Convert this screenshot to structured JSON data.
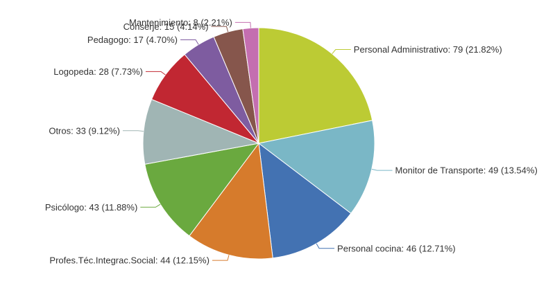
{
  "chart_data": {
    "type": "pie",
    "title": "",
    "start_angle_deg": 0,
    "direction": "clockwise",
    "slices": [
      {
        "label": "Personal Administrativo",
        "value": 79,
        "percent": "21.82%",
        "color": "#BCCB34",
        "text": "Personal Administrativo: 79 (21.82%)"
      },
      {
        "label": "Monitor de Transporte",
        "value": 49,
        "percent": "13.54%",
        "color": "#7AB7C6",
        "text": "Monitor de Transporte: 49 (13.54%)"
      },
      {
        "label": "Personal cocina",
        "value": 46,
        "percent": "12.71%",
        "color": "#4372B2",
        "text": "Personal cocina: 46 (12.71%)"
      },
      {
        "label": "Profes.Téc.Integrac.Social",
        "value": 44,
        "percent": "12.15%",
        "color": "#D67B2C",
        "text": "Profes.Téc.Integrac.Social: 44 (12.15%)"
      },
      {
        "label": "Psicólogo",
        "value": 43,
        "percent": "11.88%",
        "color": "#6AA93F",
        "text": "Psicólogo: 43 (11.88%)"
      },
      {
        "label": "Otros",
        "value": 33,
        "percent": "9.12%",
        "color": "#A0B5B4",
        "text": "Otros: 33 (9.12%)"
      },
      {
        "label": "Logopeda",
        "value": 28,
        "percent": "7.73%",
        "color": "#C12732",
        "text": "Logopeda: 28 (7.73%)"
      },
      {
        "label": "Pedagogo",
        "value": 17,
        "percent": "4.70%",
        "color": "#7E5CA0",
        "text": "Pedagogo: 17 (4.70%)"
      },
      {
        "label": "Conserje",
        "value": 15,
        "percent": "4.14%",
        "color": "#86564C",
        "text": "Conserje: 15 (4.14%)"
      },
      {
        "label": "Mantenimiento",
        "value": 8,
        "percent": "2.21%",
        "color": "#C46EB0",
        "text": "Mantenimiento: 8 (2.21%)"
      }
    ]
  }
}
